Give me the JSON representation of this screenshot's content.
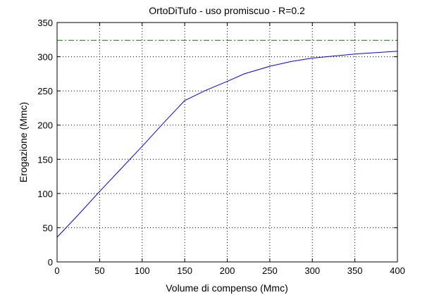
{
  "chart_data": {
    "type": "line",
    "title": "OrtoDiTufo  -  uso promiscuo  -   R=0.2",
    "xlabel": "Volume di compenso (Mmc)",
    "ylabel": "Erogazione (Mmc)",
    "xlim": [
      0,
      400
    ],
    "ylim": [
      0,
      350
    ],
    "xticks": [
      0,
      50,
      100,
      150,
      200,
      250,
      300,
      350,
      400
    ],
    "yticks": [
      0,
      50,
      100,
      150,
      200,
      250,
      300,
      350
    ],
    "grid": true,
    "series": [
      {
        "color": "#0000ff",
        "style": "solid",
        "x": [
          0,
          25,
          50,
          75,
          100,
          125,
          150,
          175,
          200,
          220,
          250,
          275,
          300,
          325,
          350,
          375,
          400
        ],
        "y": [
          36,
          69,
          103,
          136,
          169,
          203,
          236,
          251,
          264,
          275,
          286,
          293,
          298,
          301,
          304,
          306,
          308
        ]
      },
      {
        "color": "#008000",
        "style": "dashdot",
        "x": [
          0,
          400
        ],
        "y": [
          324,
          324
        ]
      }
    ]
  }
}
